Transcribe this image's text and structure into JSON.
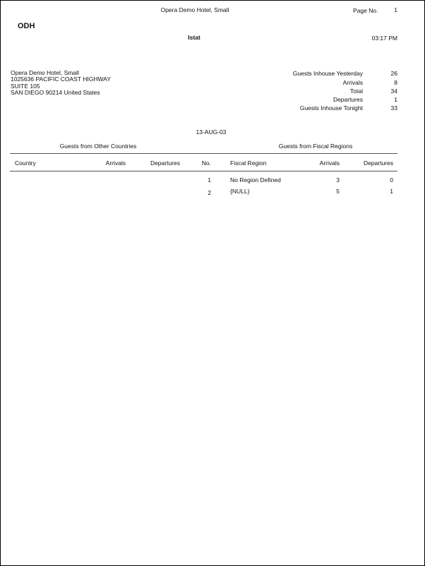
{
  "header": {
    "hotel_name": "Opera Demo Hotel, Small",
    "page_label": "Page No.",
    "page_number": "1",
    "code": "ODH",
    "report_name": "Istat",
    "time": "03:17 PM"
  },
  "address": [
    "Opera Demo Hotel, Small",
    "1025636 PACIFIC COAST HIGHWAY",
    "SUITE 105",
    "SAN DIEGO 90214 United States"
  ],
  "stats": [
    {
      "label": "Guests Inhouse Yesterday",
      "value": "26"
    },
    {
      "label": "Arrivals",
      "value": "8"
    },
    {
      "label": "Total",
      "value": "34"
    },
    {
      "label": "Departures",
      "value": "1"
    },
    {
      "label": "Guests Inhouse Tonight",
      "value": "33"
    }
  ],
  "date": "13-AUG-03",
  "sections": {
    "countries_title": "Guests from Other Countries",
    "regions_title": "Guests from Fiscal Regions"
  },
  "columns": {
    "country": "Country",
    "arrivals": "Arrivals",
    "departures": "Departures",
    "no": "No.",
    "fiscal_region": "Fiscal Region",
    "region_arrivals": "Arrivals",
    "region_departures": "Departures"
  },
  "rows": [
    {
      "no": "1",
      "region": "No Region Defined",
      "arrivals": "3",
      "departures": "0"
    },
    {
      "no": "2",
      "region": "{NULL}",
      "arrivals": "5",
      "departures": "1"
    }
  ]
}
